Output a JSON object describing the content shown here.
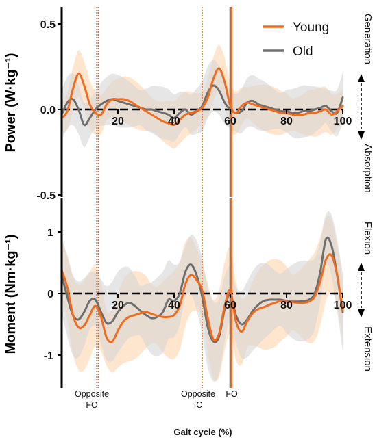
{
  "colors": {
    "young": "#F26B1D",
    "old": "#6E6E6E",
    "young_band": "#FDDCBD",
    "old_band": "#D6D6D6"
  },
  "xlabel": "Gait cycle (%)",
  "legend": [
    "Young",
    "Old"
  ],
  "annotations": {
    "opposite_fo": [
      "Opposite",
      "FO"
    ],
    "opposite_ic": [
      "Opposite",
      "IC"
    ],
    "fo": "FO"
  },
  "side_labels": {
    "power": {
      "top": "Generation",
      "bottom": "Absorption"
    },
    "moment": {
      "top": "Flexion",
      "bottom": "Extension"
    }
  },
  "chart_data": [
    {
      "type": "line",
      "panel": "power",
      "ylabel": "Power (W·kg⁻¹)",
      "xlim": [
        0,
        100
      ],
      "ylim": [
        -0.5,
        0.6
      ],
      "x_ticks": [
        "20",
        "40",
        "60",
        "80",
        "100"
      ],
      "y_ticks": [
        "0.5",
        "0.0",
        "-0.5"
      ],
      "markers": {
        "opposite_fo_young": 13,
        "opposite_fo_old": 12.5,
        "opposite_ic": 50,
        "fo_young": 60.4,
        "fo_old": 60
      },
      "x": [
        0,
        2,
        4,
        6,
        8,
        10,
        12,
        14,
        16,
        18,
        20,
        22,
        24,
        26,
        28,
        30,
        32,
        34,
        36,
        38,
        40,
        42,
        44,
        46,
        48,
        50,
        52,
        54,
        56,
        58,
        60,
        62,
        64,
        66,
        68,
        70,
        72,
        74,
        76,
        78,
        80,
        82,
        84,
        86,
        88,
        90,
        92,
        94,
        96,
        98,
        100
      ],
      "series": [
        {
          "name": "Young",
          "values": [
            -0.05,
            -0.01,
            0.12,
            0.21,
            0.14,
            0.03,
            -0.02,
            -0.03,
            0.03,
            0.06,
            0.06,
            0.06,
            0.05,
            0.03,
            0.01,
            -0.01,
            -0.03,
            -0.05,
            -0.07,
            -0.08,
            -0.09,
            -0.06,
            -0.03,
            -0.02,
            -0.01,
            0.01,
            0.07,
            0.18,
            0.24,
            0.16,
            0.02,
            -0.02,
            0.02,
            0.04,
            0.03,
            0.02,
            0.01,
            0.0,
            -0.01,
            -0.02,
            -0.02,
            -0.03,
            -0.03,
            -0.03,
            -0.02,
            -0.02,
            -0.01,
            0.0,
            -0.03,
            -0.01,
            0.02
          ]
        },
        {
          "name": "Old",
          "values": [
            -0.03,
            0.04,
            0.06,
            0.0,
            -0.09,
            -0.05,
            0.0,
            0.03,
            0.05,
            0.06,
            0.05,
            0.04,
            0.03,
            0.02,
            0.01,
            0.0,
            0.0,
            -0.01,
            -0.02,
            -0.03,
            -0.05,
            -0.02,
            0.0,
            -0.03,
            -0.01,
            0.02,
            0.1,
            0.14,
            0.11,
            0.04,
            0.0,
            -0.02,
            -0.01,
            0.04,
            0.05,
            0.03,
            0.02,
            0.01,
            0.0,
            -0.01,
            -0.01,
            -0.02,
            -0.02,
            -0.01,
            -0.01,
            0.0,
            0.01,
            0.02,
            -0.01,
            -0.02,
            0.07
          ]
        }
      ]
    },
    {
      "type": "line",
      "panel": "moment",
      "ylabel": "Moment (Nm·kg⁻¹)",
      "xlim": [
        0,
        100
      ],
      "ylim": [
        -1.5,
        1.5
      ],
      "x_ticks": [
        "20",
        "40",
        "60",
        "80",
        "100"
      ],
      "y_ticks": [
        "1",
        "0",
        "-1"
      ],
      "markers": {
        "opposite_fo_young": 13,
        "opposite_fo_old": 12.5,
        "opposite_ic": 50,
        "fo_young": 60.4,
        "fo_old": 60
      },
      "x": [
        0,
        2,
        4,
        6,
        8,
        10,
        12,
        14,
        16,
        18,
        20,
        22,
        24,
        26,
        28,
        30,
        32,
        34,
        36,
        38,
        40,
        42,
        44,
        46,
        48,
        50,
        52,
        54,
        56,
        58,
        60,
        62,
        64,
        66,
        68,
        70,
        72,
        74,
        76,
        78,
        80,
        82,
        84,
        86,
        88,
        90,
        92,
        94,
        96,
        98,
        100
      ],
      "series": [
        {
          "name": "Young",
          "values": [
            0.38,
            0.1,
            -0.35,
            -0.55,
            -0.52,
            -0.35,
            -0.2,
            -0.38,
            -0.72,
            -0.78,
            -0.6,
            -0.45,
            -0.38,
            -0.35,
            -0.32,
            -0.3,
            -0.33,
            -0.36,
            -0.38,
            -0.38,
            -0.35,
            -0.2,
            0.15,
            0.3,
            0.22,
            0.05,
            -0.4,
            -0.75,
            -0.65,
            -0.2,
            0.05,
            -0.45,
            -0.62,
            -0.45,
            -0.32,
            -0.25,
            -0.22,
            -0.18,
            -0.15,
            -0.12,
            -0.13,
            -0.14,
            -0.15,
            -0.15,
            -0.13,
            -0.05,
            0.2,
            0.55,
            0.62,
            0.3,
            -0.28
          ]
        },
        {
          "name": "Old",
          "values": [
            0.3,
            -0.05,
            -0.35,
            -0.42,
            -0.3,
            -0.12,
            -0.1,
            -0.3,
            -0.48,
            -0.45,
            -0.3,
            -0.2,
            -0.15,
            -0.2,
            -0.28,
            -0.35,
            -0.4,
            -0.38,
            -0.3,
            -0.1,
            -0.12,
            0.0,
            0.35,
            0.47,
            0.3,
            -0.05,
            -0.55,
            -0.78,
            -0.7,
            -0.25,
            0.0,
            -0.35,
            -0.5,
            -0.42,
            -0.28,
            -0.18,
            -0.12,
            -0.1,
            -0.1,
            -0.1,
            -0.12,
            -0.13,
            -0.13,
            -0.12,
            -0.1,
            0.0,
            0.35,
            0.88,
            0.78,
            0.3,
            -0.3
          ]
        }
      ]
    }
  ]
}
